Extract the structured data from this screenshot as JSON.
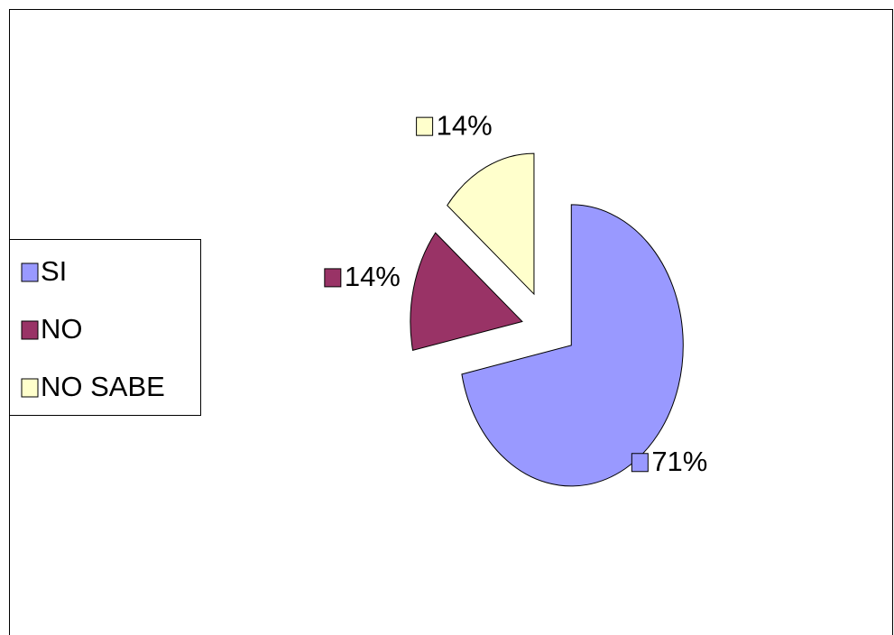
{
  "chart_data": {
    "type": "pie",
    "categories": [
      "SI",
      "NO",
      "NO SABE"
    ],
    "values": [
      71,
      14,
      14
    ],
    "value_labels": [
      "71%",
      "14%",
      "14%"
    ],
    "colors": [
      "#9999ff",
      "#993366",
      "#ffffcc"
    ],
    "legend": "left"
  }
}
